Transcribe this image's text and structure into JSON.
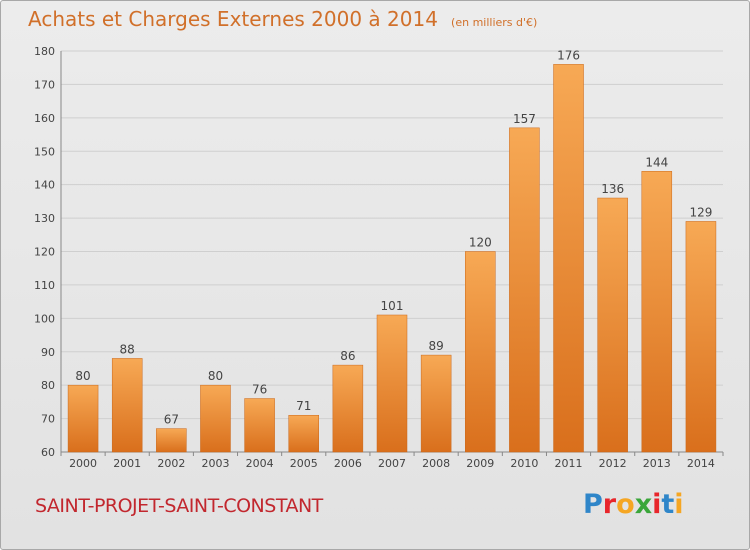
{
  "header": {
    "title": "Achats et Charges Externes 2000 à 2014",
    "unit": "(en milliers d'€)"
  },
  "footer": {
    "commune": "SAINT-PROJET-SAINT-CONSTANT",
    "logo_text": "Proxiti",
    "logo_colors": [
      "#2f86c9",
      "#e8262b",
      "#f5a623",
      "#3aa63a",
      "#e8262b",
      "#2f86c9",
      "#f5a623"
    ]
  },
  "colors": {
    "bar_light": "#f7a955",
    "bar_dark": "#d96f1c",
    "grid": "#cfcfcf",
    "axis": "#888888"
  },
  "chart_data": {
    "type": "bar",
    "title": "Achats et Charges Externes 2000 à 2014",
    "subtitle": "(en milliers d'€)",
    "xlabel": "",
    "ylabel": "",
    "categories": [
      "2000",
      "2001",
      "2002",
      "2003",
      "2004",
      "2005",
      "2006",
      "2007",
      "2008",
      "2009",
      "2010",
      "2011",
      "2012",
      "2013",
      "2014"
    ],
    "values": [
      80,
      88,
      67,
      80,
      76,
      71,
      86,
      101,
      89,
      120,
      157,
      176,
      136,
      144,
      129
    ],
    "ylim": [
      60,
      180
    ],
    "yticks": [
      60,
      70,
      80,
      90,
      100,
      110,
      120,
      130,
      140,
      150,
      160,
      170,
      180
    ],
    "grid": true,
    "legend": "none"
  }
}
